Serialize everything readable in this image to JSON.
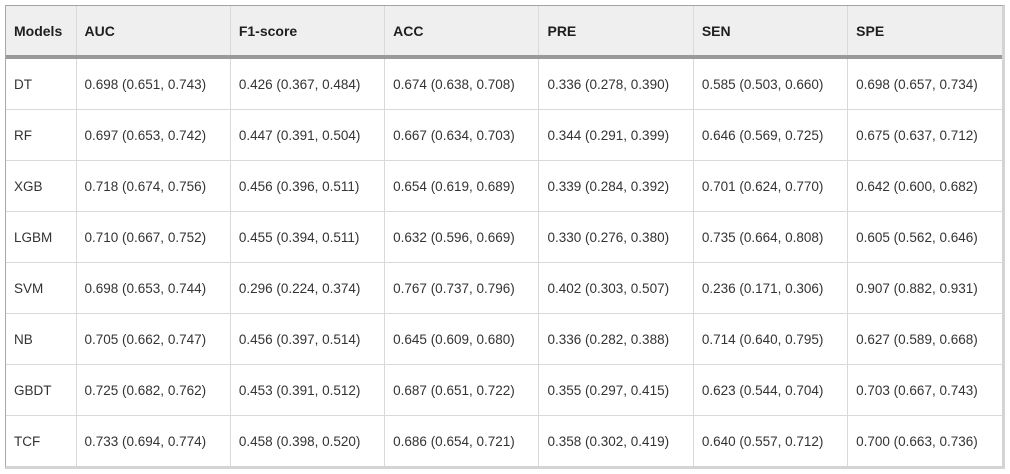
{
  "colors": {
    "header_background": "#efefef",
    "header_rule": "#9a9a9a",
    "grid_line": "#d9d9d9",
    "outer_border": "#a9a9a9",
    "outer_border_light": "#d4d4d4",
    "header_text": "#1f1f1f",
    "body_text": "#333333"
  },
  "chart_data": {
    "type": "table",
    "columns": [
      "Models",
      "AUC",
      "F1-score",
      "ACC",
      "PRE",
      "SEN",
      "SPE"
    ],
    "rows": [
      {
        "model": "DT",
        "values": [
          "0.698 (0.651, 0.743)",
          "0.426 (0.367, 0.484)",
          "0.674 (0.638, 0.708)",
          "0.336 (0.278, 0.390)",
          "0.585 (0.503, 0.660)",
          "0.698 (0.657, 0.734)"
        ]
      },
      {
        "model": "RF",
        "values": [
          "0.697 (0.653, 0.742)",
          "0.447 (0.391, 0.504)",
          "0.667 (0.634, 0.703)",
          "0.344 (0.291, 0.399)",
          "0.646 (0.569, 0.725)",
          "0.675 (0.637, 0.712)"
        ]
      },
      {
        "model": "XGB",
        "values": [
          "0.718 (0.674, 0.756)",
          "0.456 (0.396, 0.511)",
          "0.654 (0.619, 0.689)",
          "0.339 (0.284, 0.392)",
          "0.701 (0.624, 0.770)",
          "0.642 (0.600, 0.682)"
        ]
      },
      {
        "model": "LGBM",
        "values": [
          "0.710 (0.667, 0.752)",
          "0.455 (0.394, 0.511)",
          "0.632 (0.596, 0.669)",
          "0.330 (0.276, 0.380)",
          "0.735 (0.664, 0.808)",
          "0.605 (0.562, 0.646)"
        ]
      },
      {
        "model": "SVM",
        "values": [
          "0.698 (0.653, 0.744)",
          "0.296 (0.224, 0.374)",
          "0.767 (0.737, 0.796)",
          "0.402 (0.303, 0.507)",
          "0.236 (0.171, 0.306)",
          "0.907 (0.882, 0.931)"
        ]
      },
      {
        "model": "NB",
        "values": [
          "0.705 (0.662, 0.747)",
          "0.456 (0.397, 0.514)",
          "0.645 (0.609, 0.680)",
          "0.336 (0.282, 0.388)",
          "0.714 (0.640, 0.795)",
          "0.627 (0.589, 0.668)"
        ]
      },
      {
        "model": "GBDT",
        "values": [
          "0.725 (0.682, 0.762)",
          "0.453 (0.391, 0.512)",
          "0.687 (0.651, 0.722)",
          "0.355 (0.297, 0.415)",
          "0.623 (0.544, 0.704)",
          "0.703 (0.667, 0.743)"
        ]
      },
      {
        "model": "TCF",
        "values": [
          "0.733 (0.694, 0.774)",
          "0.458 (0.398, 0.520)",
          "0.686 (0.654, 0.721)",
          "0.358 (0.302, 0.419)",
          "0.640 (0.557, 0.712)",
          "0.700 (0.663, 0.736)"
        ]
      }
    ]
  }
}
